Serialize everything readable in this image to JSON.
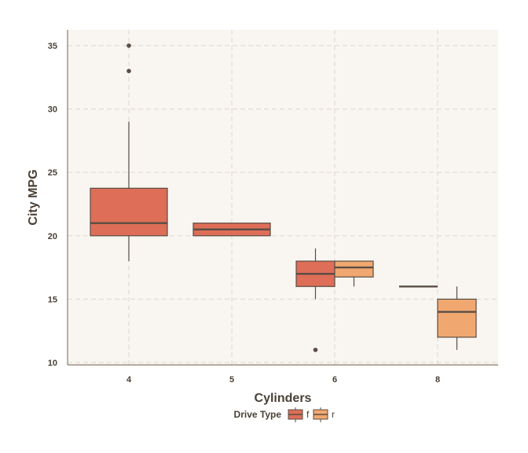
{
  "chart_data": {
    "type": "boxplot",
    "xlabel": "Cylinders",
    "ylabel": "City MPG",
    "categories": [
      "4",
      "5",
      "6",
      "8"
    ],
    "ylim": [
      10,
      36
    ],
    "yticks": [
      10,
      15,
      20,
      25,
      30,
      35
    ],
    "grid": true,
    "legend": {
      "title": "Drive Type",
      "position": "bottom",
      "entries": [
        "f",
        "r"
      ]
    },
    "series": [
      {
        "name": "f",
        "color": "#de6e57",
        "boxes": [
          {
            "category": "4",
            "min": 18,
            "q1": 20,
            "median": 21,
            "q3": 23.75,
            "max": 29,
            "outliers": [
              33,
              35
            ]
          },
          {
            "category": "5",
            "min": 20,
            "q1": 20,
            "median": 20.5,
            "q3": 21,
            "max": 21,
            "outliers": []
          },
          {
            "category": "6",
            "min": 15,
            "q1": 16,
            "median": 17,
            "q3": 18,
            "max": 19,
            "outliers": [
              11
            ]
          },
          {
            "category": "8",
            "min": 16,
            "q1": 16,
            "median": 16,
            "q3": 16,
            "max": 16,
            "outliers": []
          }
        ]
      },
      {
        "name": "r",
        "color": "#f0a870",
        "boxes": [
          {
            "category": "6",
            "min": 16,
            "q1": 16.75,
            "median": 17.5,
            "q3": 18,
            "max": 18,
            "outliers": []
          },
          {
            "category": "8",
            "min": 11,
            "q1": 12,
            "median": 14,
            "q3": 15,
            "max": 16,
            "outliers": []
          }
        ]
      }
    ],
    "colors": {
      "panel_background": "#f9f6f1",
      "grid": "#e2dcd3",
      "axis": "#8a7b6b",
      "box_outline": "#5a4d45",
      "text": "#4a4036"
    }
  }
}
